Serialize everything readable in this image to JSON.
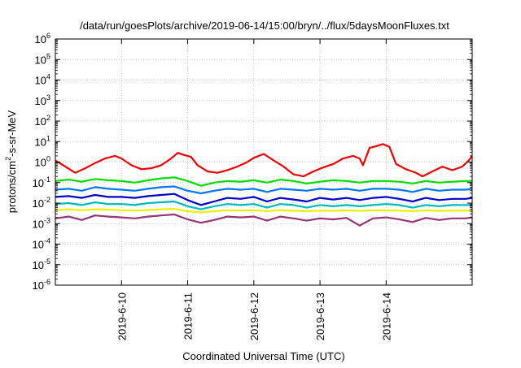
{
  "chart_data": {
    "type": "line",
    "title": "/data/run/goesPlots/archive/2019-06-14/15:00/bryn/../flux/5daysMoonFluxes.txt",
    "xlabel": "Coordinated Universal Time (UTC)",
    "ylabel": {
      "base": "protons/cm",
      "sup": "2",
      "rest": "-s-sr-MeV"
    },
    "yscale": "log",
    "ylim": [
      1e-06,
      1000000.0
    ],
    "xlim": [
      0,
      6.3
    ],
    "grid": true,
    "legend": "none",
    "y_ticks": [
      {
        "value": 1e-06,
        "base": "10",
        "exp": "-6"
      },
      {
        "value": 1e-05,
        "base": "10",
        "exp": "-5"
      },
      {
        "value": 0.0001,
        "base": "10",
        "exp": "-4"
      },
      {
        "value": 0.001,
        "base": "10",
        "exp": "-3"
      },
      {
        "value": 0.01,
        "base": "10",
        "exp": "-2"
      },
      {
        "value": 0.1,
        "base": "10",
        "exp": "-1"
      },
      {
        "value": 1,
        "base": "10",
        "exp": "0"
      },
      {
        "value": 10.0,
        "base": "10",
        "exp": "1"
      },
      {
        "value": 100.0,
        "base": "10",
        "exp": "2"
      },
      {
        "value": 1000.0,
        "base": "10",
        "exp": "3"
      },
      {
        "value": 10000.0,
        "base": "10",
        "exp": "4"
      },
      {
        "value": 100000.0,
        "base": "10",
        "exp": "5"
      },
      {
        "value": 1000000.0,
        "base": "10",
        "exp": "6"
      }
    ],
    "x_ticks": [
      {
        "value": 1.0,
        "label": "2019-6-10"
      },
      {
        "value": 2.0,
        "label": "2019-6-11"
      },
      {
        "value": 3.0,
        "label": "2019-6-12"
      },
      {
        "value": 4.0,
        "label": "2019-6-13"
      },
      {
        "value": 5.0,
        "label": "2019-6-14"
      }
    ],
    "series": [
      {
        "color": "#ee0000",
        "x": [
          0,
          0.15,
          0.3,
          0.45,
          0.6,
          0.75,
          0.9,
          1.0,
          1.15,
          1.3,
          1.45,
          1.6,
          1.75,
          1.85,
          1.95,
          2.05,
          2.15,
          2.3,
          2.45,
          2.6,
          2.75,
          2.9,
          3.0,
          3.15,
          3.3,
          3.45,
          3.6,
          3.75,
          3.9,
          4.05,
          4.2,
          4.35,
          4.5,
          4.6,
          4.65,
          4.75,
          4.85,
          4.95,
          5.05,
          5.15,
          5.3,
          5.45,
          5.55,
          5.7,
          5.85,
          6.0,
          6.15,
          6.25,
          6.3
        ],
        "values": [
          1.2,
          0.6,
          0.3,
          0.5,
          0.9,
          1.5,
          2.0,
          1.5,
          0.7,
          0.45,
          0.5,
          0.7,
          1.5,
          2.8,
          2.2,
          1.8,
          0.7,
          0.35,
          0.3,
          0.4,
          0.6,
          1.0,
          1.6,
          2.5,
          1.2,
          0.6,
          0.25,
          0.2,
          0.35,
          0.55,
          0.8,
          1.5,
          2.0,
          1.5,
          0.7,
          5.0,
          6.0,
          7.5,
          5.5,
          0.8,
          0.45,
          0.3,
          0.2,
          0.35,
          0.6,
          0.4,
          0.6,
          1.2,
          2.0
        ]
      },
      {
        "color": "#00dd00",
        "x": [
          0,
          0.2,
          0.4,
          0.6,
          0.8,
          1.0,
          1.2,
          1.4,
          1.6,
          1.8,
          2.0,
          2.2,
          2.4,
          2.6,
          2.8,
          3.0,
          3.2,
          3.4,
          3.6,
          3.8,
          4.0,
          4.2,
          4.4,
          4.6,
          4.8,
          5.0,
          5.2,
          5.4,
          5.6,
          5.8,
          6.0,
          6.2,
          6.3
        ],
        "values": [
          0.12,
          0.14,
          0.11,
          0.15,
          0.13,
          0.12,
          0.1,
          0.13,
          0.16,
          0.18,
          0.12,
          0.07,
          0.1,
          0.12,
          0.11,
          0.13,
          0.1,
          0.14,
          0.12,
          0.09,
          0.11,
          0.13,
          0.12,
          0.1,
          0.12,
          0.12,
          0.11,
          0.09,
          0.12,
          0.1,
          0.11,
          0.12,
          0.12
        ]
      },
      {
        "color": "#0077ff",
        "x": [
          0,
          0.2,
          0.4,
          0.6,
          0.8,
          1.0,
          1.2,
          1.4,
          1.6,
          1.8,
          2.0,
          2.2,
          2.4,
          2.6,
          2.8,
          3.0,
          3.2,
          3.4,
          3.6,
          3.8,
          4.0,
          4.2,
          4.4,
          4.6,
          4.8,
          5.0,
          5.2,
          5.4,
          5.6,
          5.8,
          6.0,
          6.2,
          6.3
        ],
        "values": [
          0.045,
          0.05,
          0.04,
          0.06,
          0.05,
          0.045,
          0.04,
          0.05,
          0.06,
          0.065,
          0.04,
          0.03,
          0.04,
          0.05,
          0.045,
          0.05,
          0.035,
          0.05,
          0.045,
          0.04,
          0.05,
          0.045,
          0.05,
          0.04,
          0.05,
          0.05,
          0.045,
          0.035,
          0.05,
          0.04,
          0.045,
          0.045,
          0.05
        ]
      },
      {
        "color": "#0000cc",
        "x": [
          0,
          0.2,
          0.4,
          0.6,
          0.8,
          1.0,
          1.2,
          1.4,
          1.6,
          1.8,
          2.0,
          2.2,
          2.4,
          2.6,
          2.8,
          3.0,
          3.2,
          3.4,
          3.6,
          3.8,
          4.0,
          4.2,
          4.4,
          4.6,
          4.8,
          5.0,
          5.2,
          5.4,
          5.6,
          5.8,
          6.0,
          6.2,
          6.3
        ],
        "values": [
          0.02,
          0.022,
          0.018,
          0.025,
          0.02,
          0.02,
          0.018,
          0.022,
          0.025,
          0.028,
          0.014,
          0.008,
          0.012,
          0.018,
          0.016,
          0.02,
          0.012,
          0.018,
          0.015,
          0.012,
          0.018,
          0.015,
          0.018,
          0.014,
          0.018,
          0.02,
          0.016,
          0.012,
          0.018,
          0.014,
          0.016,
          0.016,
          0.018
        ]
      },
      {
        "color": "#00bbbb",
        "x": [
          0,
          0.2,
          0.4,
          0.6,
          0.8,
          1.0,
          1.2,
          1.4,
          1.6,
          1.8,
          2.0,
          2.2,
          2.4,
          2.6,
          2.8,
          3.0,
          3.2,
          3.4,
          3.6,
          3.8,
          4.0,
          4.2,
          4.4,
          4.6,
          4.8,
          5.0,
          5.2,
          5.4,
          5.6,
          5.8,
          6.0,
          6.2,
          6.3
        ],
        "values": [
          0.009,
          0.01,
          0.008,
          0.011,
          0.009,
          0.009,
          0.008,
          0.01,
          0.011,
          0.012,
          0.007,
          0.005,
          0.007,
          0.009,
          0.008,
          0.009,
          0.006,
          0.009,
          0.008,
          0.006,
          0.008,
          0.007,
          0.008,
          0.007,
          0.008,
          0.009,
          0.008,
          0.006,
          0.008,
          0.007,
          0.008,
          0.008,
          0.008
        ]
      },
      {
        "color": "#eeee00",
        "x": [
          0,
          0.2,
          0.4,
          0.6,
          0.8,
          1.0,
          1.2,
          1.4,
          1.6,
          1.8,
          2.0,
          2.2,
          2.4,
          2.6,
          2.8,
          3.0,
          3.2,
          3.4,
          3.6,
          3.8,
          4.0,
          4.2,
          4.4,
          4.6,
          4.8,
          5.0,
          5.2,
          5.4,
          5.6,
          5.8,
          6.0,
          6.2,
          6.3
        ],
        "values": [
          0.0045,
          0.005,
          0.0045,
          0.005,
          0.0048,
          0.0045,
          0.0043,
          0.0046,
          0.005,
          0.0052,
          0.004,
          0.0035,
          0.004,
          0.0045,
          0.0043,
          0.0045,
          0.004,
          0.0045,
          0.0042,
          0.004,
          0.0043,
          0.0042,
          0.0044,
          0.0042,
          0.0044,
          0.0045,
          0.0043,
          0.004,
          0.0044,
          0.0042,
          0.0043,
          0.0043,
          0.0044
        ]
      },
      {
        "color": "#993377",
        "x": [
          0,
          0.2,
          0.4,
          0.6,
          0.8,
          1.0,
          1.2,
          1.4,
          1.6,
          1.8,
          2.0,
          2.2,
          2.4,
          2.6,
          2.8,
          3.0,
          3.2,
          3.4,
          3.6,
          3.8,
          4.0,
          4.2,
          4.4,
          4.6,
          4.8,
          5.0,
          5.2,
          5.4,
          5.6,
          5.8,
          6.0,
          6.2,
          6.3
        ],
        "values": [
          0.0018,
          0.0022,
          0.0015,
          0.0025,
          0.0022,
          0.002,
          0.0018,
          0.0022,
          0.0025,
          0.0028,
          0.0016,
          0.0011,
          0.0015,
          0.0022,
          0.002,
          0.0022,
          0.0014,
          0.0022,
          0.0018,
          0.0014,
          0.0018,
          0.0016,
          0.0019,
          0.0008,
          0.0018,
          0.002,
          0.0016,
          0.0012,
          0.0019,
          0.0015,
          0.0018,
          0.0018,
          0.002
        ]
      }
    ]
  }
}
